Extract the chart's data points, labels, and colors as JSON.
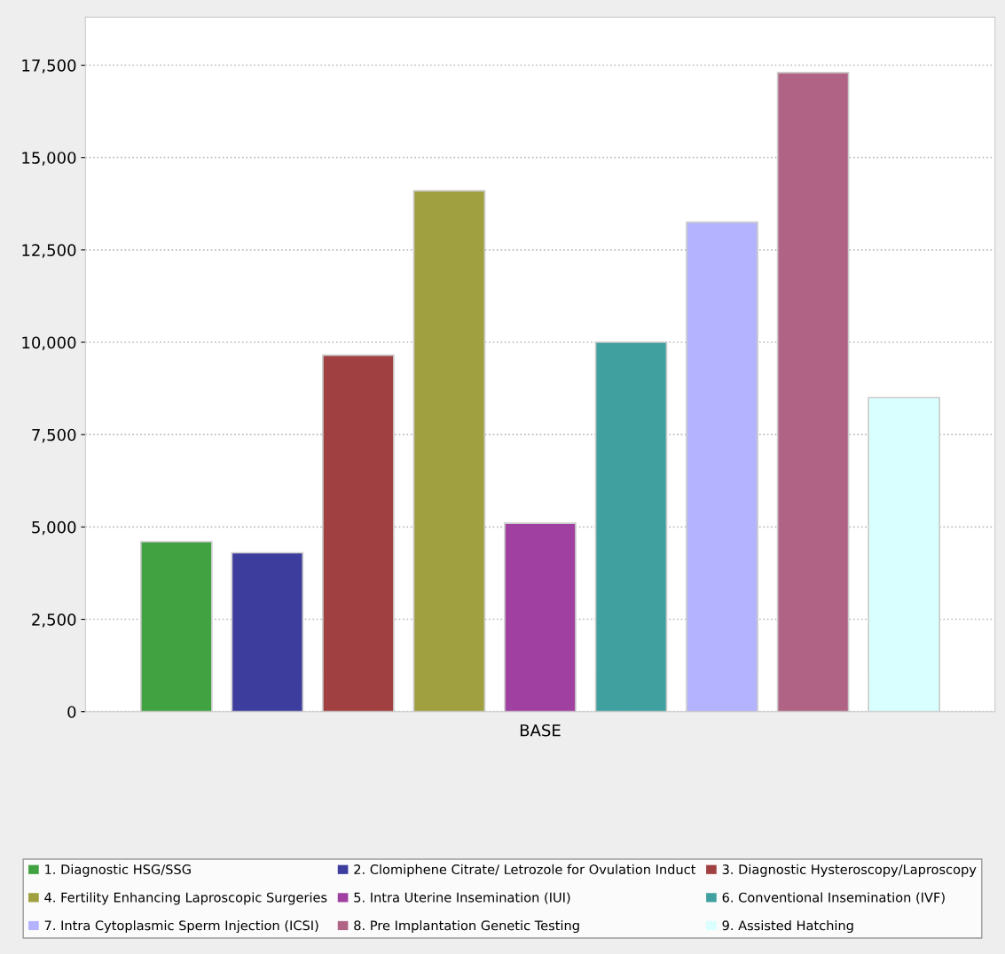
{
  "chart_data": {
    "type": "bar",
    "categories": [
      "BASE"
    ],
    "ylim": [
      0,
      18800
    ],
    "yticks": [
      {
        "value": 0,
        "label": "0"
      },
      {
        "value": 2500,
        "label": "2,500"
      },
      {
        "value": 5000,
        "label": "5,000"
      },
      {
        "value": 7500,
        "label": "7,500"
      },
      {
        "value": 10000,
        "label": "10,000"
      },
      {
        "value": 12500,
        "label": "12,500"
      },
      {
        "value": 15000,
        "label": "15,000"
      },
      {
        "value": 17500,
        "label": "17,500"
      }
    ],
    "grid": "y",
    "legend": "bottom",
    "series": [
      {
        "name": "1. Diagnostic HSG/SSG",
        "color": "#41a241",
        "values": [
          4600
        ]
      },
      {
        "name": "2. Clomiphene Citrate/ Letrozole for Ovulation Induct",
        "color": "#3d3d9e",
        "values": [
          4300
        ]
      },
      {
        "name": "3. Diagnostic Hysteroscopy/Laproscopy",
        "color": "#a04040",
        "values": [
          9650
        ]
      },
      {
        "name": "4. Fertility Enhancing Laproscopic Surgeries",
        "color": "#a0a040",
        "values": [
          14100
        ]
      },
      {
        "name": "5. Intra Uterine Insemination (IUI)",
        "color": "#a040a0",
        "values": [
          5100
        ]
      },
      {
        "name": "6. Conventional Insemination (IVF)",
        "color": "#40a0a0",
        "values": [
          10000
        ]
      },
      {
        "name": "7. Intra Cytoplasmic Sperm Injection (ICSI)",
        "color": "#b3b3ff",
        "values": [
          13250
        ]
      },
      {
        "name": "8. Pre Implantation Genetic Testing",
        "color": "#b06385",
        "values": [
          17300
        ]
      },
      {
        "name": "9. Assisted Hatching",
        "color": "#d9ffff",
        "values": [
          8500
        ]
      }
    ]
  }
}
